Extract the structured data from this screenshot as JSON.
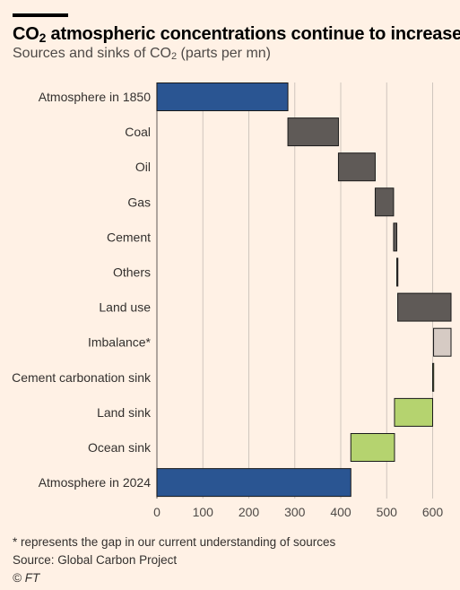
{
  "title_main": "CO",
  "title_sub": "2",
  "title_rest": " atmospheric concentrations continue to increase",
  "subtitle_main": "Sources and sinks of CO",
  "subtitle_sub": "2",
  "subtitle_rest": " (parts per mn)",
  "footnote": "* represents the gap in our current understanding of sources",
  "source": "Source: Global Carbon Project",
  "credit": "© FT",
  "colors": {
    "background": "#fff1e5",
    "atmosphere": "#2a5592",
    "source": "#5f5a57",
    "imbalance": "#d6cbc4",
    "sink": "#b5d36f",
    "grid": "#cfc6bd"
  },
  "chart_data": {
    "type": "bar",
    "subtype": "waterfall",
    "orientation": "horizontal",
    "categories": [
      "Atmosphere in 1850",
      "Coal",
      "Oil",
      "Gas",
      "Cement",
      "Others",
      "Land use",
      "Imbalance*",
      "Cement carbonation sink",
      "Land sink",
      "Ocean sink",
      "Atmosphere in 2024"
    ],
    "bars": [
      {
        "label": "Atmosphere in 1850",
        "start": 0,
        "end": 285,
        "kind": "atmosphere"
      },
      {
        "label": "Coal",
        "start": 285,
        "end": 395,
        "kind": "source"
      },
      {
        "label": "Oil",
        "start": 395,
        "end": 475,
        "kind": "source"
      },
      {
        "label": "Gas",
        "start": 475,
        "end": 515,
        "kind": "source"
      },
      {
        "label": "Cement",
        "start": 515,
        "end": 522,
        "kind": "source"
      },
      {
        "label": "Others",
        "start": 522,
        "end": 524,
        "kind": "source"
      },
      {
        "label": "Land use",
        "start": 524,
        "end": 640,
        "kind": "source"
      },
      {
        "label": "Imbalance*",
        "start": 602,
        "end": 640,
        "kind": "imbalance"
      },
      {
        "label": "Cement carbonation sink",
        "start": 600,
        "end": 602,
        "kind": "sink"
      },
      {
        "label": "Land sink",
        "start": 517,
        "end": 600,
        "kind": "sink"
      },
      {
        "label": "Ocean sink",
        "start": 422,
        "end": 517,
        "kind": "sink"
      },
      {
        "label": "Atmosphere in 2024",
        "start": 0,
        "end": 422,
        "kind": "atmosphere"
      }
    ],
    "xlim": [
      0,
      640
    ],
    "xticks": [
      "0",
      "100",
      "200",
      "300",
      "400",
      "500",
      "600"
    ],
    "grid": true,
    "legend": "none"
  }
}
